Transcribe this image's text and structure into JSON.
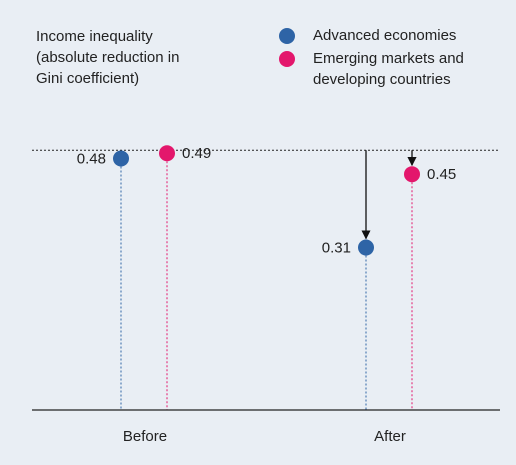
{
  "chart_data": {
    "type": "dot",
    "title": "Income inequality (absolute reduction in Gini coefficient)",
    "categories": [
      "Before",
      "After"
    ],
    "series": [
      {
        "name": "Advanced economies",
        "color": "#2e64a6",
        "values": [
          0.48,
          0.31
        ]
      },
      {
        "name": "Emerging markets and developing countries",
        "color": "#e3176c",
        "values": [
          0.49,
          0.45
        ]
      }
    ],
    "ylim": [
      0,
      0.5
    ]
  }
}
